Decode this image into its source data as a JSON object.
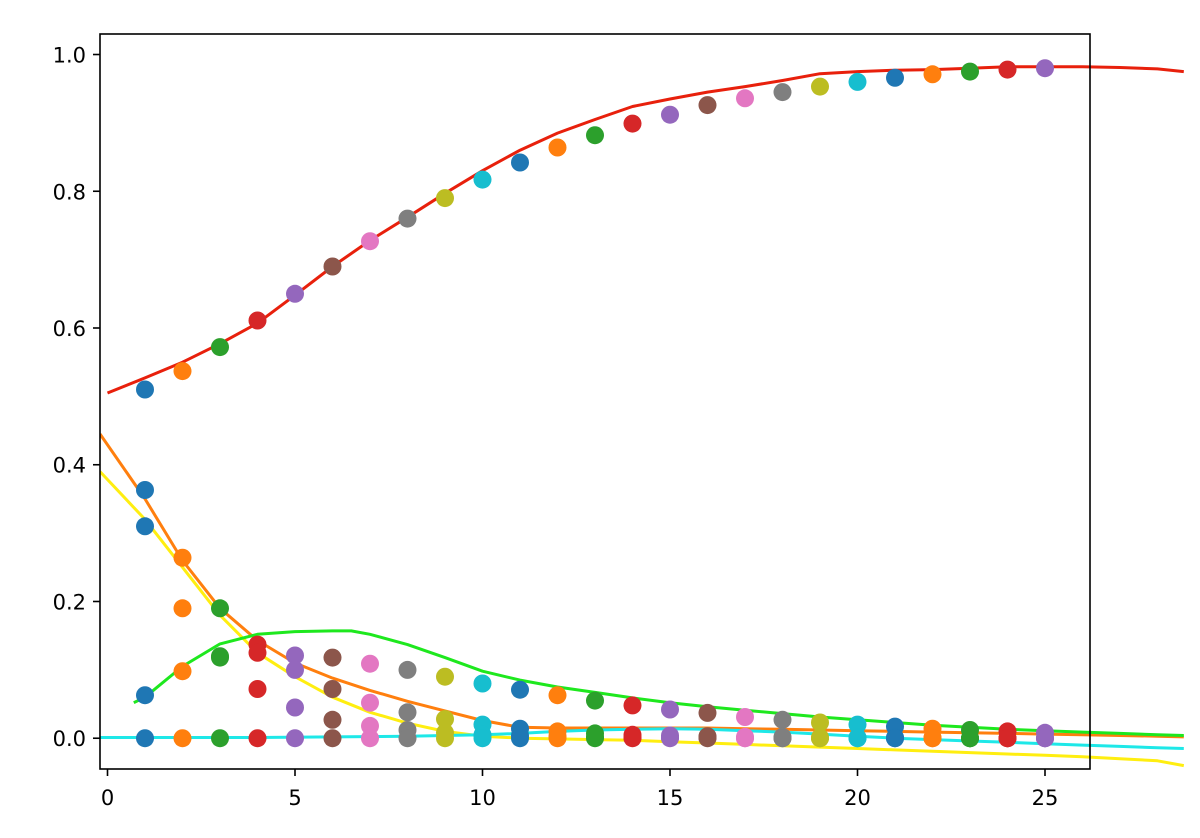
{
  "chart_data": {
    "type": "scatter",
    "title": "",
    "xlabel": "",
    "ylabel": "",
    "xlim": [
      -0.2,
      26.2
    ],
    "ylim": [
      -0.045,
      1.03
    ],
    "grid": false,
    "legend": "none",
    "xticks": [
      0,
      5,
      10,
      15,
      20,
      25
    ],
    "yticks": [
      0.0,
      0.2,
      0.4,
      0.6,
      0.8,
      1.0
    ],
    "xtick_labels": [
      "0",
      "5",
      "10",
      "15",
      "20",
      "25"
    ],
    "ytick_labels": [
      "0.0",
      "0.2",
      "0.4",
      "0.6",
      "0.8",
      "1.0"
    ],
    "palette": [
      "#1f77b4",
      "#ff7f0e",
      "#2ca02c",
      "#d62728",
      "#9467bd",
      "#8c564b",
      "#e377c2",
      "#7f7f7f",
      "#bcbd22",
      "#17becf"
    ],
    "point_x": [
      1,
      2,
      3,
      4,
      5,
      6,
      7,
      8,
      9,
      10,
      11,
      12,
      13,
      14,
      15,
      16,
      17,
      18,
      19,
      20,
      21,
      22,
      23,
      24,
      25
    ],
    "point_series": [
      {
        "values": [
          0.51,
          0.537,
          0.572,
          0.611,
          0.65,
          0.69,
          0.727,
          0.76,
          0.79,
          0.817,
          0.842,
          0.864,
          0.882,
          0.899,
          0.912,
          0.926,
          0.936,
          0.945,
          0.953,
          0.96,
          0.966,
          0.971,
          0.975,
          0.978,
          0.98
        ]
      },
      {
        "values": [
          0.363,
          0.264,
          0.19,
          0.137,
          0.121,
          0.118,
          0.109,
          0.1,
          0.09,
          0.08,
          0.071,
          0.063,
          0.055,
          0.048,
          0.042,
          0.037,
          0.031,
          0.027,
          0.023,
          0.02,
          0.017,
          0.014,
          0.012,
          0.01,
          0.008
        ]
      },
      {
        "values": [
          0.31,
          0.19,
          0.12,
          0.125,
          0.1,
          0.072,
          0.052,
          0.038,
          0.028,
          0.02,
          0.014,
          0.01,
          0.007,
          0.005,
          0.004,
          0.003,
          0.002,
          0.002,
          0.001,
          0.001,
          0.001,
          0.001,
          0.0,
          0.0,
          0.0
        ]
      },
      {
        "values": [
          0.063,
          0.098,
          0.118,
          0.072,
          0.045,
          0.027,
          0.018,
          0.012,
          0.008,
          0.005,
          0.004,
          0.003,
          0.002,
          0.001,
          0.001,
          0.001,
          0.0,
          0.0,
          0.0,
          0.0,
          0.0,
          0.0,
          0.0,
          0.0,
          0.0
        ]
      },
      {
        "values": [
          0.0,
          0.0,
          0.0,
          0.0,
          0.0,
          0.0,
          0.0,
          0.0,
          0.0,
          0.0,
          0.0,
          0.0,
          0.0,
          0.0,
          0.0,
          0.0,
          0.0,
          0.0,
          0.0,
          0.0,
          0.0,
          0.0,
          0.0,
          0.0,
          0.0
        ]
      }
    ],
    "curves": [
      {
        "color": "#e8200c",
        "x": [
          0,
          1,
          2,
          3,
          4,
          5,
          6,
          7,
          8,
          9,
          10,
          11,
          12,
          13,
          14,
          15,
          16,
          17,
          18,
          19,
          20,
          21,
          22,
          23,
          24,
          25,
          26,
          27,
          28,
          28.7
        ],
        "y": [
          0.505,
          0.527,
          0.55,
          0.577,
          0.607,
          0.648,
          0.69,
          0.728,
          0.762,
          0.797,
          0.83,
          0.86,
          0.885,
          0.905,
          0.924,
          0.935,
          0.945,
          0.953,
          0.962,
          0.972,
          0.975,
          0.977,
          0.978,
          0.98,
          0.982,
          0.982,
          0.982,
          0.981,
          0.979,
          0.975
        ]
      },
      {
        "color": "#ff7f0e",
        "x": [
          -0.2,
          1,
          2,
          3,
          4,
          5,
          6,
          7,
          8,
          9,
          10,
          11,
          12,
          13,
          14,
          15,
          16,
          17,
          18,
          19,
          20,
          21,
          22,
          23,
          24,
          25,
          26,
          27,
          28,
          28.7
        ],
        "y": [
          0.445,
          0.35,
          0.26,
          0.19,
          0.143,
          0.11,
          0.088,
          0.07,
          0.054,
          0.04,
          0.026,
          0.016,
          0.015,
          0.015,
          0.015,
          0.015,
          0.015,
          0.014,
          0.013,
          0.012,
          0.011,
          0.01,
          0.009,
          0.008,
          0.007,
          0.006,
          0.005,
          0.004,
          0.003,
          0.002
        ]
      },
      {
        "color": "#ffee10",
        "x": [
          -0.2,
          1,
          2,
          3,
          4,
          5,
          6,
          7,
          8,
          9,
          10,
          11,
          12,
          13,
          14,
          15,
          16,
          17,
          18,
          19,
          20,
          21,
          22,
          23,
          24,
          25,
          26,
          27,
          28,
          28.7
        ],
        "y": [
          0.39,
          0.32,
          0.25,
          0.18,
          0.125,
          0.09,
          0.06,
          0.038,
          0.022,
          0.01,
          0.003,
          0.0,
          -0.001,
          -0.002,
          -0.003,
          -0.005,
          -0.007,
          -0.009,
          -0.011,
          -0.013,
          -0.015,
          -0.017,
          -0.019,
          -0.021,
          -0.023,
          -0.025,
          -0.027,
          -0.03,
          -0.033,
          -0.04
        ]
      },
      {
        "color": "#1ee81e",
        "x": [
          0.7,
          1,
          2,
          3,
          4,
          5,
          6,
          6.5,
          7,
          8,
          9,
          10,
          11,
          12,
          13,
          14,
          15,
          16,
          17,
          18,
          19,
          20,
          21,
          22,
          23,
          24,
          25,
          26,
          27,
          28,
          28.7
        ],
        "y": [
          0.052,
          0.06,
          0.105,
          0.138,
          0.152,
          0.156,
          0.157,
          0.157,
          0.152,
          0.137,
          0.118,
          0.098,
          0.085,
          0.075,
          0.067,
          0.059,
          0.052,
          0.046,
          0.041,
          0.036,
          0.031,
          0.027,
          0.023,
          0.019,
          0.016,
          0.013,
          0.011,
          0.009,
          0.007,
          0.005,
          0.004
        ]
      },
      {
        "color": "#1ee8e8",
        "x": [
          -0.2,
          2,
          4,
          6,
          8,
          10,
          11,
          12,
          13,
          14,
          15,
          16,
          17,
          18,
          19,
          20,
          21,
          22,
          23,
          24,
          25,
          26,
          27,
          28,
          28.7
        ],
        "y": [
          0.001,
          0.001,
          0.001,
          0.002,
          0.003,
          0.005,
          0.007,
          0.01,
          0.012,
          0.013,
          0.014,
          0.013,
          0.011,
          0.009,
          0.006,
          0.003,
          0.0,
          -0.002,
          -0.004,
          -0.006,
          -0.008,
          -0.01,
          -0.012,
          -0.014,
          -0.015
        ]
      }
    ]
  }
}
